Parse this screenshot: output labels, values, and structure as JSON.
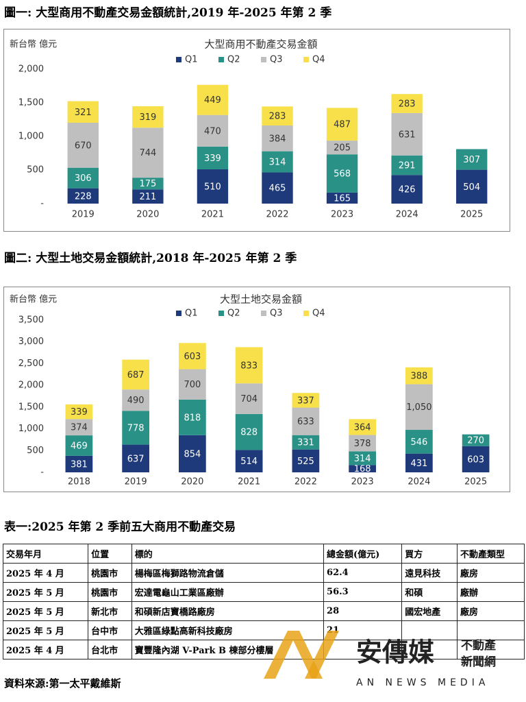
{
  "chart_data": [
    {
      "type": "stacked-bar",
      "heading": "圖一: 大型商用不動產交易金額統計,2019 年-2025 年第 2 季",
      "title": "大型商用不動產交易金額",
      "y_label": "新台幣 億元",
      "categories": [
        "2019",
        "2020",
        "2021",
        "2022",
        "2023",
        "2024",
        "2025"
      ],
      "series": [
        {
          "name": "Q1",
          "color": "#1f3a7a",
          "values": [
            228,
            211,
            510,
            465,
            165,
            426,
            504
          ]
        },
        {
          "name": "Q2",
          "color": "#2a9187",
          "values": [
            306,
            175,
            339,
            314,
            568,
            291,
            307
          ]
        },
        {
          "name": "Q3",
          "color": "#bfbfbf",
          "values": [
            670,
            744,
            470,
            384,
            205,
            631,
            null
          ]
        },
        {
          "name": "Q4",
          "color": "#f7e04a",
          "values": [
            321,
            319,
            449,
            283,
            487,
            283,
            null
          ]
        }
      ],
      "ylim": [
        0,
        2000
      ],
      "yticks": [
        {
          "value": 0,
          "label": "-"
        },
        500,
        {
          "value": 1000,
          "label": "1,000"
        },
        {
          "value": 1500,
          "label": "1,500"
        },
        {
          "value": 2000,
          "label": "2,000"
        }
      ],
      "grid": false,
      "legend": "top"
    },
    {
      "type": "stacked-bar",
      "heading": "圖二: 大型土地交易金額統計,2018 年-2025 年第 2 季",
      "title": "大型土地交易金額",
      "y_label": "新台幣 億元",
      "categories": [
        "2018",
        "2019",
        "2020",
        "2021",
        "2022",
        "2023",
        "2024",
        "2025"
      ],
      "series": [
        {
          "name": "Q1",
          "color": "#1f3a7a",
          "values": [
            381,
            637,
            854,
            514,
            525,
            168,
            431,
            603
          ]
        },
        {
          "name": "Q2",
          "color": "#2a9187",
          "values": [
            469,
            778,
            818,
            828,
            331,
            314,
            546,
            270
          ]
        },
        {
          "name": "Q3",
          "color": "#bfbfbf",
          "values": [
            374,
            490,
            700,
            704,
            633,
            378,
            1050,
            null
          ],
          "value_labels": [
            "374",
            "490",
            "700",
            "704",
            "633",
            "378",
            "1,050",
            null
          ]
        },
        {
          "name": "Q4",
          "color": "#f7e04a",
          "values": [
            339,
            687,
            603,
            833,
            337,
            364,
            388,
            null
          ]
        }
      ],
      "ylim": [
        0,
        3500
      ],
      "yticks": [
        {
          "value": 0,
          "label": "-"
        },
        500,
        {
          "value": 1000,
          "label": "1,000"
        },
        {
          "value": 1500,
          "label": "1,500"
        },
        {
          "value": 2000,
          "label": "2,000"
        },
        {
          "value": 2500,
          "label": "2,500"
        },
        {
          "value": 3000,
          "label": "3,000"
        },
        {
          "value": 3500,
          "label": "3,500"
        }
      ],
      "grid": false,
      "legend": "top"
    }
  ],
  "table": {
    "title": "表一:2025 年第 2 季前五大商用不動產交易",
    "header": [
      "交易年月",
      "位置",
      "標的",
      "總金額(億元)",
      "買方",
      "不動產類型"
    ],
    "rows": [
      [
        "2025 年 4 月",
        "桃園市",
        "楊梅區梅獅路物流倉儲",
        "62.4",
        "遠見科技",
        "廠房"
      ],
      [
        "2025 年 5 月",
        "桃園市",
        "宏達電龜山工業區廠辦",
        "56.3",
        "和碩",
        "廠辦"
      ],
      [
        "2025 年 5 月",
        "新北市",
        "和碩新店寶橋路廠房",
        "28",
        "國宏地產",
        "廠房"
      ],
      [
        "2025 年 5 月",
        "台中市",
        "大雅區綠點高新科技廠房",
        "21",
        null,
        null
      ],
      [
        "2025 年 4 月",
        "台北市",
        "寶豐隆內湖 V-Park B 棟部分樓層",
        null,
        null,
        null
      ]
    ]
  },
  "source": "資料來源:第一太平戴維斯",
  "watermark": {
    "logo": "安傳媒",
    "tag_top": "不動產",
    "tag_bottom": "新聞網",
    "english": "AN NEWS MEDIA"
  }
}
